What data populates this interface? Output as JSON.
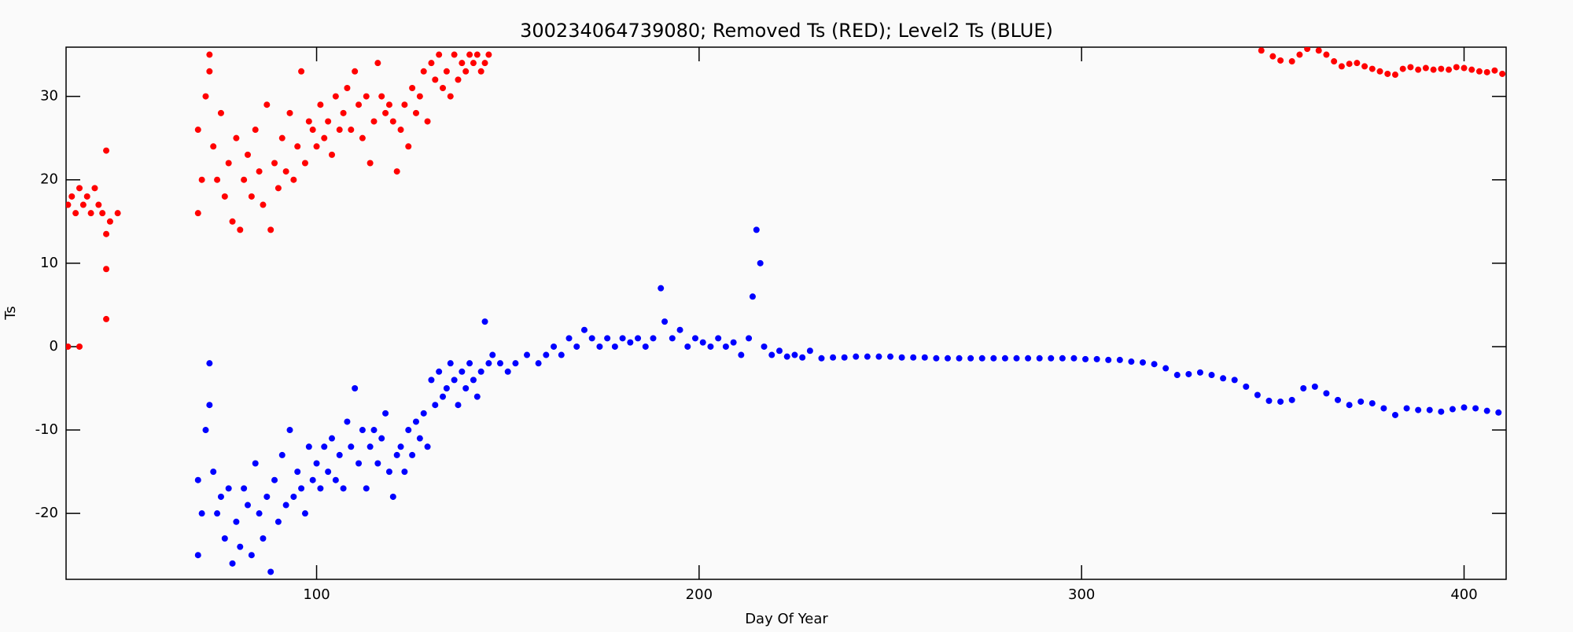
{
  "chart_data": {
    "type": "scatter",
    "title": "300234064739080; Removed Ts (RED); Level2 Ts (BLUE)",
    "x_label": "Day Of Year",
    "y_label": "Ts",
    "xlim": [
      34.5,
      411
    ],
    "ylim": [
      -27.9,
      35.9
    ],
    "xticks": [
      100,
      200,
      300,
      400
    ],
    "yticks": [
      -20,
      -10,
      0,
      10,
      20,
      30
    ],
    "grid": false,
    "series": [
      {
        "color": "#ff0000",
        "x": [
          35,
          36,
          37,
          38,
          39,
          40,
          41,
          42,
          43,
          44,
          35,
          38,
          45,
          45,
          45,
          45,
          46,
          48,
          69,
          69,
          70,
          71,
          72,
          72,
          73,
          74,
          75,
          76,
          77,
          78,
          79,
          80,
          81,
          82,
          83,
          84,
          85,
          86,
          87,
          88,
          89,
          90,
          91,
          92,
          93,
          94,
          95,
          96,
          97,
          98,
          99,
          100,
          101,
          102,
          103,
          104,
          105,
          106,
          107,
          108,
          109,
          110,
          111,
          112,
          113,
          114,
          115,
          116,
          117,
          118,
          119,
          120,
          121,
          122,
          123,
          124,
          125,
          126,
          127,
          128,
          129,
          130,
          131,
          132,
          133,
          134,
          135,
          136,
          137,
          138,
          139,
          140,
          141,
          142,
          143,
          144,
          145,
          347,
          350,
          352,
          355,
          357,
          359,
          362,
          364,
          366,
          368,
          370,
          372,
          374,
          376,
          378,
          380,
          382,
          384,
          386,
          388,
          390,
          392,
          394,
          396,
          398,
          400,
          402,
          404,
          406,
          408,
          410
        ],
        "values": [
          17,
          18,
          16,
          19,
          17,
          18,
          16,
          19,
          17,
          16,
          0,
          0,
          23.5,
          13.5,
          9.3,
          3.3,
          15,
          16,
          16,
          26,
          20,
          30,
          33,
          35,
          24,
          20,
          28,
          18,
          22,
          15,
          25,
          14,
          20,
          23,
          18,
          26,
          21,
          17,
          29,
          14,
          22,
          19,
          25,
          21,
          28,
          20,
          24,
          33,
          22,
          27,
          26,
          24,
          29,
          25,
          27,
          23,
          30,
          26,
          28,
          31,
          26,
          33,
          29,
          25,
          30,
          22,
          27,
          34,
          30,
          28,
          29,
          27,
          21,
          26,
          29,
          24,
          31,
          28,
          30,
          33,
          27,
          34,
          32,
          35,
          31,
          33,
          30,
          35,
          32,
          34,
          33,
          35,
          34,
          35,
          33,
          34,
          35,
          35.5,
          34.8,
          34.3,
          34.2,
          35,
          35.7,
          35.5,
          35,
          34.2,
          33.6,
          33.9,
          34,
          33.6,
          33.3,
          33,
          32.7,
          32.6,
          33.3,
          33.5,
          33.2,
          33.4,
          33.2,
          33.3,
          33.2,
          33.5,
          33.4,
          33.2,
          33,
          32.9,
          33.1,
          32.7
        ]
      },
      {
        "color": "#0000ff",
        "x": [
          69,
          69,
          70,
          71,
          72,
          72,
          73,
          74,
          75,
          76,
          77,
          78,
          79,
          80,
          81,
          82,
          83,
          84,
          85,
          86,
          87,
          88,
          89,
          90,
          91,
          92,
          93,
          94,
          95,
          96,
          97,
          98,
          99,
          100,
          101,
          102,
          103,
          104,
          105,
          106,
          107,
          108,
          109,
          110,
          111,
          112,
          113,
          114,
          115,
          116,
          117,
          118,
          119,
          120,
          121,
          122,
          123,
          124,
          125,
          126,
          127,
          128,
          129,
          130,
          131,
          132,
          133,
          134,
          135,
          136,
          137,
          138,
          139,
          140,
          141,
          142,
          143,
          144,
          145,
          146,
          148,
          150,
          152,
          155,
          158,
          160,
          162,
          164,
          166,
          168,
          170,
          172,
          174,
          176,
          178,
          180,
          182,
          184,
          186,
          188,
          190,
          191,
          193,
          195,
          197,
          199,
          201,
          203,
          205,
          207,
          209,
          211,
          213,
          214,
          215,
          216,
          217,
          219,
          221,
          223,
          225,
          227,
          229,
          232,
          235,
          238,
          241,
          244,
          247,
          250,
          253,
          256,
          259,
          262,
          265,
          268,
          271,
          274,
          277,
          280,
          283,
          286,
          289,
          292,
          295,
          298,
          301,
          304,
          307,
          310,
          313,
          316,
          319,
          322,
          325,
          328,
          331,
          334,
          337,
          340,
          343,
          346,
          349,
          352,
          355,
          358,
          361,
          364,
          367,
          370,
          373,
          376,
          379,
          382,
          385,
          388,
          391,
          394,
          397,
          400,
          403,
          406,
          409
        ],
        "values": [
          -25,
          -16,
          -20,
          -10,
          -7,
          -2,
          -15,
          -20,
          -18,
          -23,
          -17,
          -26,
          -21,
          -24,
          -17,
          -19,
          -25,
          -14,
          -20,
          -23,
          -18,
          -27,
          -16,
          -21,
          -13,
          -19,
          -10,
          -18,
          -15,
          -17,
          -20,
          -12,
          -16,
          -14,
          -17,
          -12,
          -15,
          -11,
          -16,
          -13,
          -17,
          -9,
          -12,
          -5,
          -14,
          -10,
          -17,
          -12,
          -10,
          -14,
          -11,
          -8,
          -15,
          -18,
          -13,
          -12,
          -15,
          -10,
          -13,
          -9,
          -11,
          -8,
          -12,
          -4,
          -7,
          -3,
          -6,
          -5,
          -2,
          -4,
          -7,
          -3,
          -5,
          -2,
          -4,
          -6,
          -3,
          3,
          -2,
          -1,
          -2,
          -3,
          -2,
          -1,
          -2,
          -1,
          0,
          -1,
          1,
          0,
          2,
          1,
          0,
          1,
          0,
          1,
          0.5,
          1,
          0,
          1,
          7,
          3,
          1,
          2,
          0,
          1,
          0.5,
          0,
          1,
          0,
          0.5,
          -1,
          1,
          6,
          14,
          10,
          0,
          -1,
          -0.5,
          -1.2,
          -1,
          -1.3,
          -0.5,
          -1.4,
          -1.3,
          -1.3,
          -1.2,
          -1.2,
          -1.2,
          -1.2,
          -1.3,
          -1.3,
          -1.3,
          -1.4,
          -1.4,
          -1.4,
          -1.4,
          -1.4,
          -1.4,
          -1.4,
          -1.4,
          -1.4,
          -1.4,
          -1.4,
          -1.4,
          -1.4,
          -1.5,
          -1.5,
          -1.6,
          -1.6,
          -1.8,
          -1.9,
          -2.1,
          -2.6,
          -3.4,
          -3.3,
          -3.1,
          -3.4,
          -3.8,
          -4.0,
          -4.8,
          -5.8,
          -6.5,
          -6.6,
          -6.4,
          -5.0,
          -4.8,
          -5.6,
          -6.4,
          -7.0,
          -6.6,
          -6.8,
          -7.4,
          -8.2,
          -7.4,
          -7.6,
          -7.6,
          -7.8,
          -7.5,
          -7.3,
          -7.4,
          -7.7,
          -7.9
        ]
      }
    ]
  }
}
